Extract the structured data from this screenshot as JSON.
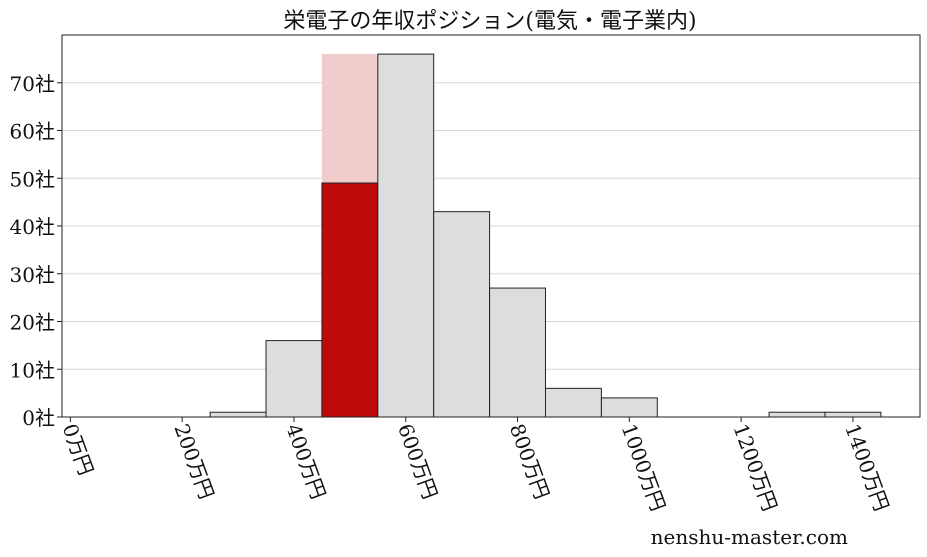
{
  "chart_data": {
    "type": "bar",
    "title": "栄電子の年収ポジション(電気・電子業内)",
    "xlabel": "",
    "ylabel": "",
    "bin_width": 100,
    "bins": [
      {
        "start": 250,
        "end": 350,
        "value": 1
      },
      {
        "start": 350,
        "end": 450,
        "value": 16
      },
      {
        "start": 450,
        "end": 550,
        "value": 49,
        "highlight": true,
        "background_value": 76
      },
      {
        "start": 550,
        "end": 650,
        "value": 76
      },
      {
        "start": 650,
        "end": 750,
        "value": 43
      },
      {
        "start": 750,
        "end": 850,
        "value": 27
      },
      {
        "start": 850,
        "end": 950,
        "value": 6
      },
      {
        "start": 950,
        "end": 1050,
        "value": 4
      },
      {
        "start": 1250,
        "end": 1350,
        "value": 1
      },
      {
        "start": 1350,
        "end": 1450,
        "value": 1
      }
    ],
    "xlim": [
      -15,
      1520
    ],
    "ylim": [
      0,
      80
    ],
    "x_ticks": [
      0,
      200,
      400,
      600,
      800,
      1000,
      1200,
      1400
    ],
    "x_tick_labels": [
      "0万円",
      "200万円",
      "400万円",
      "600万円",
      "800万円",
      "1000万円",
      "1200万円",
      "1400万円"
    ],
    "y_ticks": [
      0,
      10,
      20,
      30,
      40,
      50,
      60,
      70
    ],
    "y_tick_labels": [
      "0社",
      "10社",
      "20社",
      "30社",
      "40社",
      "50社",
      "60社",
      "70社"
    ],
    "grid": "horizontal",
    "colors": {
      "bar": "#dcdddf",
      "highlight": "#bf0a0a",
      "highlight_background": "#f0cccc",
      "edge": "#222222",
      "grid": "#d8d8d8"
    }
  },
  "watermark": "nenshu-master.com"
}
